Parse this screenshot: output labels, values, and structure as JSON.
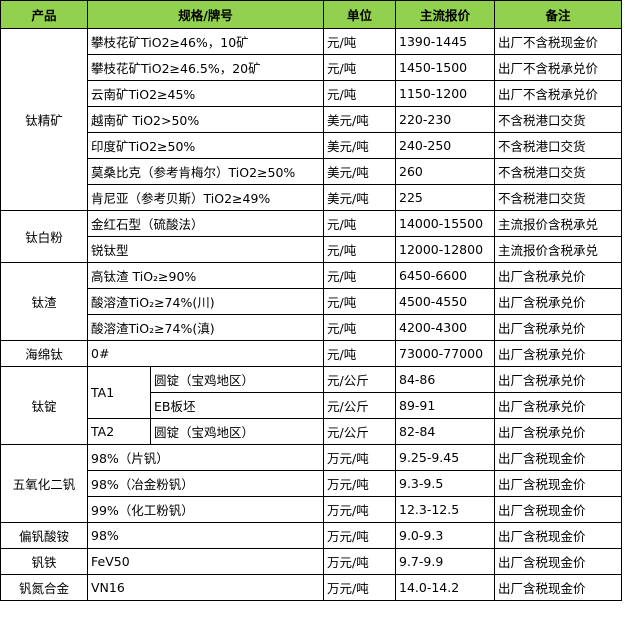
{
  "table": {
    "header": [
      "产品",
      "规格/牌号",
      "单位",
      "主流报价",
      "备注"
    ],
    "groups": [
      {
        "product": "钛精矿",
        "rows": [
          [
            "攀枝花矿TiO2≥46%，10矿",
            "元/吨",
            "1390-1445",
            "出厂不含税现金价"
          ],
          [
            "攀枝花矿TiO2≥46.5%，20矿",
            "元/吨",
            "1450-1500",
            "出厂不含税承兑价"
          ],
          [
            "云南矿TiO2≥45%",
            "元/吨",
            "1150-1200",
            "出厂不含税承兑价"
          ],
          [
            "越南矿 TiO2>50%",
            "美元/吨",
            "220-230",
            "不含税港口交货"
          ],
          [
            "印度矿TiO2≥50%",
            "美元/吨",
            "240-250",
            "不含税港口交货"
          ],
          [
            "莫桑比克（参考肯梅尔）TiO2≥50%",
            "美元/吨",
            "260",
            "不含税港口交货"
          ],
          [
            "肯尼亚（参考贝斯）TiO2≥49%",
            "美元/吨",
            "225",
            "不含税港口交货"
          ]
        ]
      },
      {
        "product": "钛白粉",
        "rows": [
          [
            "金红石型（硫酸法）",
            "元/吨",
            "14000-15500",
            "主流报价含税承兑"
          ],
          [
            "锐钛型",
            "元/吨",
            "12000-12800",
            "主流报价含税承兑"
          ]
        ]
      },
      {
        "product": "钛渣",
        "rows": [
          [
            "高钛渣 TiO₂≥90%",
            "元/吨",
            "6450-6600",
            "出厂含税承兑价"
          ],
          [
            "酸溶渣TiO₂≥74%(川)",
            "元/吨",
            "4500-4550",
            "出厂含税承兑价"
          ],
          [
            "酸溶渣TiO₂≥74%(滇)",
            "元/吨",
            "4200-4300",
            "出厂含税承兑价"
          ]
        ]
      },
      {
        "product": "海绵钛",
        "rows": [
          [
            "0#",
            "元/吨",
            "73000-77000",
            "出厂含税承兑价"
          ]
        ]
      },
      {
        "product": "钛锭",
        "subgroups": [
          {
            "grade": "TA1",
            "rows": [
              [
                "圆锭（宝鸡地区）",
                "元/公斤",
                "84-86",
                "出厂含税承兑价"
              ],
              [
                "EB板坯",
                "元/公斤",
                "89-91",
                "出厂含税承兑价"
              ]
            ]
          },
          {
            "grade": "TA2",
            "rows": [
              [
                "圆锭（宝鸡地区）",
                "元/公斤",
                "82-84",
                "出厂含税承兑价"
              ]
            ]
          }
        ]
      },
      {
        "product": "五氧化二钒",
        "rows": [
          [
            "98%（片钒）",
            "万元/吨",
            "9.25-9.45",
            "出厂含税现金价"
          ],
          [
            "98%（冶金粉钒）",
            "万元/吨",
            "9.3-9.5",
            "出厂含税现金价"
          ],
          [
            "99%（化工粉钒）",
            "万元/吨",
            "12.3-12.5",
            "出厂含税现金价"
          ]
        ]
      },
      {
        "product": "偏钒酸铵",
        "rows": [
          [
            "98%",
            "万元/吨",
            "9.0-9.3",
            "出厂含税现金价"
          ]
        ]
      },
      {
        "product": "钒铁",
        "rows": [
          [
            "FeV50",
            "万元/吨",
            "9.7-9.9",
            "出厂含税现金价"
          ]
        ]
      },
      {
        "product": "钒氮合金",
        "rows": [
          [
            "VN16",
            "万元/吨",
            "14.0-14.2",
            "出厂含税现金价"
          ]
        ]
      }
    ]
  }
}
